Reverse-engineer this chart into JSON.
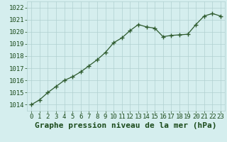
{
  "x": [
    0,
    1,
    2,
    3,
    4,
    5,
    6,
    7,
    8,
    9,
    10,
    11,
    12,
    13,
    14,
    15,
    16,
    17,
    18,
    19,
    20,
    21,
    22,
    23
  ],
  "y": [
    1014.0,
    1014.4,
    1015.0,
    1015.5,
    1016.0,
    1016.3,
    1016.7,
    1017.2,
    1017.7,
    1018.3,
    1019.1,
    1019.5,
    1020.1,
    1020.6,
    1020.4,
    1020.3,
    1019.6,
    1019.7,
    1019.75,
    1019.8,
    1020.6,
    1021.3,
    1021.5,
    1021.3
  ],
  "line_color": "#2d5a2d",
  "marker": "+",
  "marker_size": 4,
  "marker_lw": 1.0,
  "line_width": 0.9,
  "background_color": "#d5eeee",
  "grid_color": "#b0d0d0",
  "title": "Graphe pression niveau de la mer (hPa)",
  "ylim": [
    1013.5,
    1022.5
  ],
  "xlim": [
    -0.5,
    23.5
  ],
  "yticks": [
    1014,
    1015,
    1016,
    1017,
    1018,
    1019,
    1020,
    1021,
    1022
  ],
  "xticks": [
    0,
    1,
    2,
    3,
    4,
    5,
    6,
    7,
    8,
    9,
    10,
    11,
    12,
    13,
    14,
    15,
    16,
    17,
    18,
    19,
    20,
    21,
    22,
    23
  ],
  "title_fontsize": 8.0,
  "title_color": "#1a4a1a",
  "tick_fontsize": 6.5,
  "tick_color": "#1a4a1a"
}
